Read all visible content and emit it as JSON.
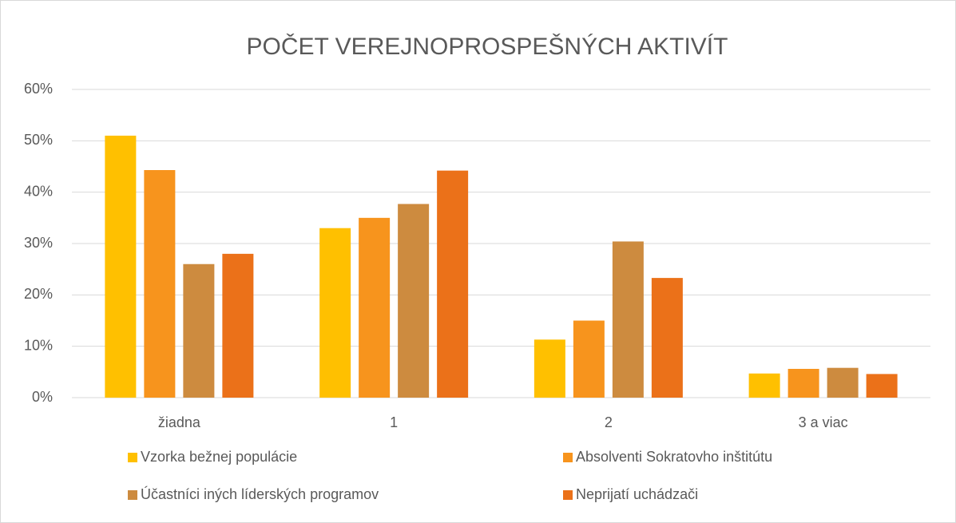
{
  "chart_data": {
    "type": "bar",
    "title": "POČET VEREJNOPROSPEŠNÝCH AKTIVÍT",
    "categories": [
      "žiadna",
      "1",
      "2",
      "3 a viac"
    ],
    "series": [
      {
        "name": "Vzorka bežnej populácie",
        "color": "#ffc000",
        "values": [
          51,
          33,
          11.3,
          4.7
        ]
      },
      {
        "name": "Absolventi Sokratovho inštitútu",
        "color": "#f7941d",
        "values": [
          44.3,
          35,
          15,
          5.6
        ]
      },
      {
        "name": "Účastníci iných líderských programov",
        "color": "#cd8b3f",
        "values": [
          26,
          37.7,
          30.4,
          5.8
        ]
      },
      {
        "name": "Neprijatí uchádzači",
        "color": "#eb7119",
        "values": [
          28,
          44.2,
          23.3,
          4.6
        ]
      }
    ],
    "ylim": [
      0,
      60
    ],
    "yticks": [
      {
        "value": 0,
        "label": "0%"
      },
      {
        "value": 10,
        "label": "10%"
      },
      {
        "value": 20,
        "label": "20%"
      },
      {
        "value": 30,
        "label": "30%"
      },
      {
        "value": 40,
        "label": "40%"
      },
      {
        "value": 50,
        "label": "50%"
      },
      {
        "value": 60,
        "label": "60%"
      }
    ],
    "grid": true
  }
}
